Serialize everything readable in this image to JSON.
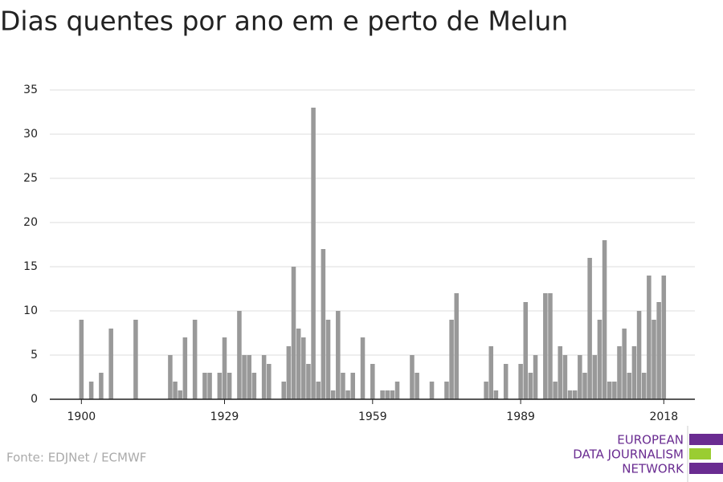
{
  "chart_data": {
    "type": "bar",
    "title": "Dias quentes por ano em e perto de Melun",
    "x": [
      1900,
      1902,
      1904,
      1906,
      1911,
      1918,
      1919,
      1920,
      1921,
      1923,
      1925,
      1926,
      1928,
      1929,
      1930,
      1932,
      1933,
      1934,
      1935,
      1937,
      1938,
      1941,
      1942,
      1943,
      1944,
      1945,
      1946,
      1947,
      1948,
      1949,
      1950,
      1951,
      1952,
      1953,
      1954,
      1955,
      1957,
      1959,
      1961,
      1962,
      1963,
      1964,
      1967,
      1968,
      1971,
      1974,
      1975,
      1976,
      1982,
      1983,
      1984,
      1986,
      1989,
      1990,
      1991,
      1992,
      1994,
      1995,
      1996,
      1997,
      1998,
      1999,
      2000,
      2001,
      2002,
      2003,
      2004,
      2005,
      2006,
      2007,
      2008,
      2009,
      2010,
      2011,
      2012,
      2013,
      2014,
      2015,
      2016,
      2017,
      2018
    ],
    "values": [
      9,
      2,
      3,
      8,
      9,
      5,
      2,
      1,
      7,
      9,
      3,
      3,
      3,
      7,
      3,
      10,
      5,
      5,
      3,
      5,
      4,
      2,
      6,
      15,
      8,
      7,
      4,
      33,
      2,
      17,
      9,
      1,
      10,
      3,
      1,
      3,
      7,
      4,
      1,
      1,
      1,
      2,
      5,
      3,
      2,
      2,
      9,
      12,
      2,
      6,
      1,
      4,
      4,
      11,
      3,
      5,
      12,
      12,
      2,
      6,
      5,
      1,
      1,
      5,
      3,
      16,
      5,
      9,
      18,
      2,
      2,
      6,
      8,
      3,
      6,
      10,
      3,
      14,
      9,
      11,
      14
    ],
    "color": "#999999",
    "xlim": [
      1893.6,
      2024.3
    ],
    "xticks": [
      1900,
      1929,
      1959,
      1989,
      2018
    ],
    "ylim": [
      0,
      35
    ],
    "yticks": [
      0,
      5,
      10,
      15,
      20,
      25,
      30,
      35
    ],
    "grid": true
  },
  "footer": {
    "source": "Fonte: EDJNet / ECMWF",
    "logo": [
      "EUROPEAN",
      "DATA JOURNALISM",
      "NETWORK"
    ]
  }
}
